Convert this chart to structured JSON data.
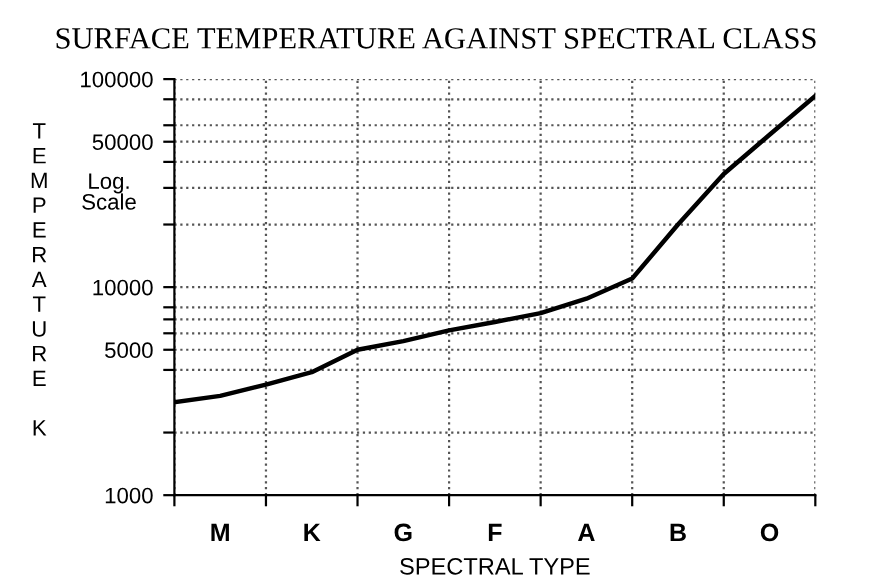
{
  "chart_data": {
    "type": "line",
    "title": "SURFACE TEMPERATURE AGAINST SPECTRAL CLASS",
    "xlabel": "SPECTRAL TYPE",
    "ylabel": "TEMPERATURE K",
    "annotations": [
      "Log. Scale"
    ],
    "categories": [
      null,
      "M",
      null,
      "K",
      null,
      "G",
      null,
      "F",
      null,
      "A",
      null,
      "B",
      null,
      "O",
      null
    ],
    "series": [
      {
        "color": "#000000",
        "values": [
          2800,
          3000,
          3400,
          3900,
          5000,
          5500,
          6200,
          6800,
          7500,
          8800,
          11000,
          20000,
          35000,
          54000,
          83000
        ]
      }
    ],
    "log": "y",
    "ylim": [
      1000,
      100000
    ],
    "yticks": [
      1000,
      {
        "value": 2000,
        "label": null
      },
      {
        "value": 4000,
        "label": null
      },
      5000,
      {
        "value": 6000,
        "label": null
      },
      {
        "value": 7000,
        "label": null
      },
      {
        "value": 8000,
        "label": null
      },
      10000,
      {
        "value": 20000,
        "label": null
      },
      {
        "value": 30000,
        "label": null
      },
      {
        "value": 40000,
        "label": null
      },
      50000,
      {
        "value": 60000,
        "label": null
      },
      {
        "value": 80000,
        "label": null
      },
      100000
    ],
    "grid": true,
    "line_style": "solid",
    "marker": "none"
  }
}
